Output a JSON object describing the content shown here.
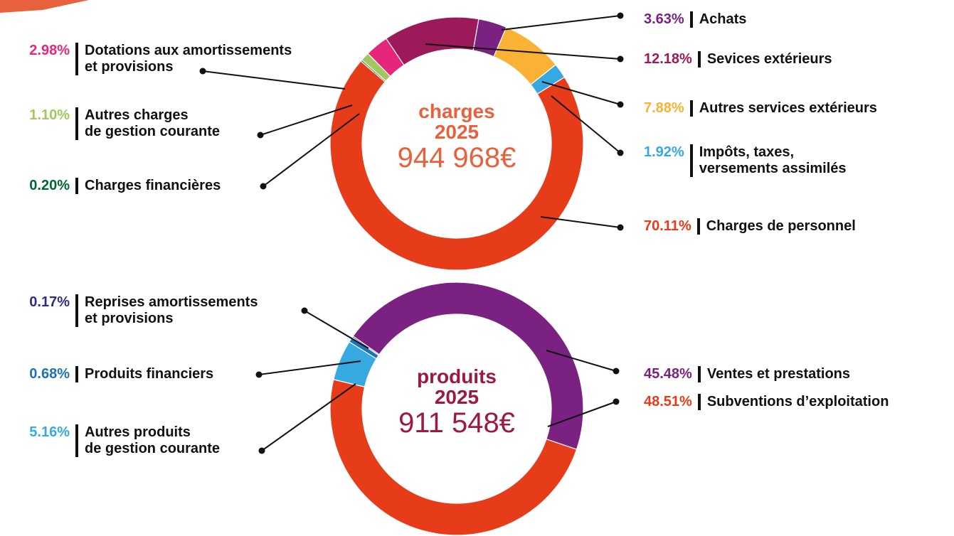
{
  "chart_data": [
    {
      "type": "pie",
      "donut": true,
      "center_label": "charges",
      "center_year": "2025",
      "center_total": "944 968€",
      "center_color": "#e8603c",
      "categories": [
        "Achats",
        "Autres services extérieurs",
        "Impôts, taxes,\nversements assimilés",
        "Charges de personnel",
        "Charges financières",
        "Autres charges\nde gestion courante",
        "Dotations aux amortissements\net provisions",
        "Sevices extérieurs"
      ],
      "values": [
        3.63,
        7.88,
        1.92,
        70.11,
        0.2,
        1.1,
        2.98,
        12.18
      ],
      "value_labels": [
        "3.63%",
        "7.88%",
        "1.92%",
        "70.11%",
        "0.20%",
        "1.10%",
        "2.98%",
        "12.18%"
      ],
      "colors": [
        "#7b2182",
        "#f9b233",
        "#36a9e1",
        "#e63c1a",
        "#006633",
        "#a3c65f",
        "#e6267a",
        "#9c1a5a"
      ]
    },
    {
      "type": "pie",
      "donut": true,
      "center_label": "produits",
      "center_year": "2025",
      "center_total": "911 548€",
      "center_color": "#9c1a3e",
      "categories": [
        "Ventes et prestations",
        "Subventions d’exploitation",
        "Autres produits\nde gestion courante",
        "Produits financiers",
        "Reprises amortissements\net provisions"
      ],
      "values": [
        45.48,
        48.51,
        5.16,
        0.68,
        0.17
      ],
      "value_labels": [
        "45.48%",
        "48.51%",
        "5.16%",
        "0.68%",
        "0.17%"
      ],
      "colors": [
        "#7b2182",
        "#e63c1a",
        "#36a9e1",
        "#1d71b8",
        "#2d2e83"
      ]
    }
  ]
}
